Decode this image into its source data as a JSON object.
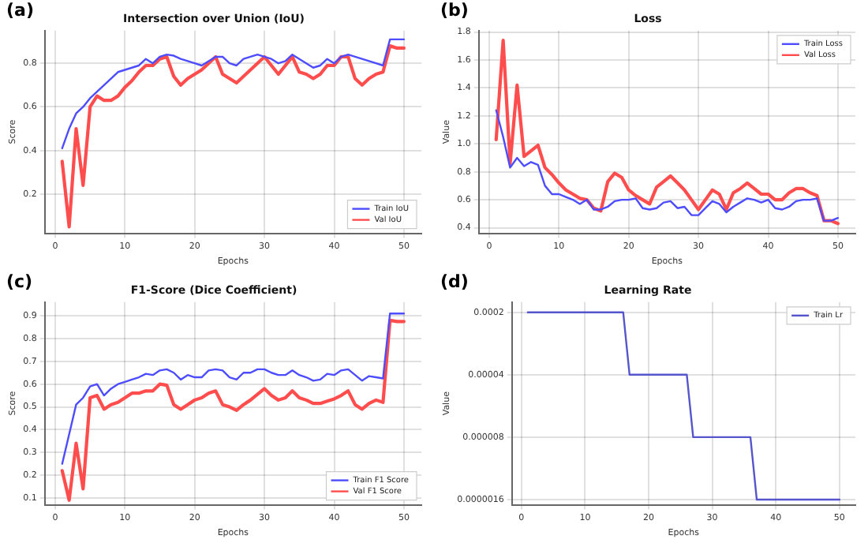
{
  "chart_data": [
    {
      "type": "line",
      "title": "Intersection over Union (IoU)",
      "xlabel": "Epochs",
      "ylabel": "Score",
      "annotations": [
        "(a)"
      ],
      "legend": "bottom right",
      "grid": true,
      "x": [
        1,
        2,
        3,
        4,
        5,
        6,
        7,
        8,
        9,
        10,
        11,
        12,
        13,
        14,
        15,
        16,
        17,
        18,
        19,
        20,
        21,
        22,
        23,
        24,
        25,
        26,
        27,
        28,
        29,
        30,
        31,
        32,
        33,
        34,
        35,
        36,
        37,
        38,
        39,
        40,
        41,
        42,
        43,
        44,
        45,
        46,
        47,
        48,
        49,
        50
      ],
      "xlim": [
        -1.5,
        52.5
      ],
      "xticks": [
        0,
        10,
        20,
        30,
        40,
        50
      ],
      "ylim": [
        0.02,
        0.95
      ],
      "yticks": [
        0.2,
        0.4,
        0.6,
        0.8
      ],
      "series": [
        {
          "name": "Train IoU",
          "color": "#4d4dff",
          "values": [
            0.41,
            0.5,
            0.57,
            0.6,
            0.64,
            0.67,
            0.7,
            0.73,
            0.76,
            0.77,
            0.78,
            0.79,
            0.82,
            0.8,
            0.83,
            0.84,
            0.835,
            0.82,
            0.81,
            0.8,
            0.79,
            0.81,
            0.83,
            0.83,
            0.8,
            0.79,
            0.82,
            0.83,
            0.84,
            0.83,
            0.82,
            0.8,
            0.81,
            0.84,
            0.82,
            0.8,
            0.78,
            0.79,
            0.82,
            0.8,
            0.83,
            0.84,
            0.83,
            0.82,
            0.81,
            0.8,
            0.79,
            0.91,
            0.91,
            0.91
          ]
        },
        {
          "name": "Val IoU",
          "color": "#ff4d4d",
          "values": [
            0.35,
            0.05,
            0.5,
            0.24,
            0.6,
            0.65,
            0.63,
            0.63,
            0.65,
            0.69,
            0.72,
            0.76,
            0.79,
            0.79,
            0.82,
            0.83,
            0.74,
            0.7,
            0.73,
            0.75,
            0.77,
            0.8,
            0.83,
            0.75,
            0.73,
            0.71,
            0.74,
            0.77,
            0.8,
            0.83,
            0.79,
            0.75,
            0.79,
            0.83,
            0.76,
            0.75,
            0.73,
            0.75,
            0.79,
            0.79,
            0.83,
            0.83,
            0.73,
            0.7,
            0.73,
            0.75,
            0.76,
            0.88,
            0.87,
            0.87
          ]
        }
      ]
    },
    {
      "type": "line",
      "title": "Loss",
      "xlabel": "Epochs",
      "ylabel": "Value",
      "annotations": [
        "(b)"
      ],
      "legend": "top right",
      "grid": true,
      "x": [
        1,
        2,
        3,
        4,
        5,
        6,
        7,
        8,
        9,
        10,
        11,
        12,
        13,
        14,
        15,
        16,
        17,
        18,
        19,
        20,
        21,
        22,
        23,
        24,
        25,
        26,
        27,
        28,
        29,
        30,
        31,
        32,
        33,
        34,
        35,
        36,
        37,
        38,
        39,
        40,
        41,
        42,
        43,
        44,
        45,
        46,
        47,
        48,
        49,
        50
      ],
      "xlim": [
        -1.5,
        52.5
      ],
      "xticks": [
        0,
        10,
        20,
        30,
        40,
        50
      ],
      "ylim": [
        0.36,
        1.81
      ],
      "yticks": [
        0.4,
        0.6,
        0.8,
        {
          "value": 1,
          "label": "1.0"
        },
        1.2,
        1.4,
        1.6,
        1.8
      ],
      "series": [
        {
          "name": "Train Loss",
          "color": "#4d4dff",
          "values": [
            1.24,
            1.05,
            0.83,
            0.9,
            0.84,
            0.87,
            0.85,
            0.7,
            0.64,
            0.64,
            0.62,
            0.6,
            0.57,
            0.6,
            0.53,
            0.53,
            0.55,
            0.59,
            0.6,
            0.6,
            0.61,
            0.54,
            0.53,
            0.54,
            0.58,
            0.59,
            0.54,
            0.55,
            0.49,
            0.49,
            0.54,
            0.59,
            0.57,
            0.51,
            0.55,
            0.58,
            0.61,
            0.6,
            0.58,
            0.6,
            0.54,
            0.53,
            0.55,
            0.59,
            0.6,
            0.6,
            0.61,
            0.45,
            0.45,
            0.47
          ]
        },
        {
          "name": "Val Loss",
          "color": "#ff4d4d",
          "values": [
            1.03,
            1.74,
            0.86,
            1.42,
            0.91,
            0.95,
            0.99,
            0.83,
            0.78,
            0.72,
            0.67,
            0.64,
            0.61,
            0.6,
            0.54,
            0.52,
            0.73,
            0.79,
            0.76,
            0.67,
            0.63,
            0.6,
            0.57,
            0.69,
            0.73,
            0.77,
            0.72,
            0.67,
            0.6,
            0.53,
            0.6,
            0.67,
            0.64,
            0.53,
            0.65,
            0.68,
            0.72,
            0.68,
            0.64,
            0.64,
            0.6,
            0.6,
            0.65,
            0.68,
            0.68,
            0.65,
            0.63,
            0.45,
            0.45,
            0.43
          ]
        }
      ]
    },
    {
      "type": "line",
      "title": "F1-Score (Dice Coefficient)",
      "xlabel": "Epochs",
      "ylabel": "Score",
      "annotations": [
        "(c)"
      ],
      "legend": "bottom right",
      "grid": true,
      "x": [
        1,
        2,
        3,
        4,
        5,
        6,
        7,
        8,
        9,
        10,
        11,
        12,
        13,
        14,
        15,
        16,
        17,
        18,
        19,
        20,
        21,
        22,
        23,
        24,
        25,
        26,
        27,
        28,
        29,
        30,
        31,
        32,
        33,
        34,
        35,
        36,
        37,
        38,
        39,
        40,
        41,
        42,
        43,
        44,
        45,
        46,
        47,
        48,
        49,
        50
      ],
      "xlim": [
        -1.5,
        52.5
      ],
      "xticks": [
        0,
        10,
        20,
        30,
        40,
        50
      ],
      "ylim": [
        0.07,
        0.96
      ],
      "yticks": [
        0.1,
        0.2,
        0.3,
        0.4,
        0.5,
        0.6,
        0.7,
        0.8,
        0.9
      ],
      "series": [
        {
          "name": "Train F1 Score",
          "color": "#4d4dff",
          "values": [
            0.25,
            0.38,
            0.51,
            0.54,
            0.59,
            0.6,
            0.55,
            0.58,
            0.6,
            0.61,
            0.62,
            0.63,
            0.645,
            0.64,
            0.66,
            0.665,
            0.65,
            0.62,
            0.64,
            0.63,
            0.63,
            0.66,
            0.665,
            0.66,
            0.63,
            0.62,
            0.65,
            0.65,
            0.665,
            0.665,
            0.65,
            0.64,
            0.64,
            0.66,
            0.64,
            0.63,
            0.615,
            0.62,
            0.645,
            0.64,
            0.66,
            0.665,
            0.64,
            0.615,
            0.635,
            0.63,
            0.625,
            0.91,
            0.91,
            0.91
          ]
        },
        {
          "name": "Val F1 Score",
          "color": "#ff4d4d",
          "values": [
            0.22,
            0.09,
            0.34,
            0.14,
            0.54,
            0.55,
            0.49,
            0.51,
            0.52,
            0.54,
            0.56,
            0.56,
            0.57,
            0.57,
            0.6,
            0.595,
            0.51,
            0.49,
            0.51,
            0.53,
            0.54,
            0.56,
            0.57,
            0.51,
            0.5,
            0.485,
            0.51,
            0.53,
            0.555,
            0.58,
            0.55,
            0.53,
            0.54,
            0.57,
            0.54,
            0.53,
            0.515,
            0.515,
            0.525,
            0.535,
            0.55,
            0.57,
            0.51,
            0.49,
            0.515,
            0.53,
            0.52,
            0.88,
            0.875,
            0.875
          ]
        }
      ]
    },
    {
      "type": "line",
      "title": "Learning Rate",
      "xlabel": "Epochs",
      "ylabel": "Value",
      "annotations": [
        "(d)"
      ],
      "legend": "top right",
      "grid": true,
      "log": "y",
      "x": [
        1,
        2,
        3,
        4,
        5,
        6,
        7,
        8,
        9,
        10,
        11,
        12,
        13,
        14,
        15,
        16,
        17,
        18,
        19,
        20,
        21,
        22,
        23,
        24,
        25,
        26,
        27,
        28,
        29,
        30,
        31,
        32,
        33,
        34,
        35,
        36,
        37,
        38,
        39,
        40,
        41,
        42,
        43,
        44,
        45,
        46,
        47,
        48,
        49,
        50
      ],
      "xlim": [
        -1.5,
        52.5
      ],
      "xticks": [
        0,
        10,
        20,
        30,
        40,
        50
      ],
      "ylim": [
        1.4e-06,
        0.00026
      ],
      "yticks": [
        {
          "value": 1.6e-06,
          "label": "0.0000016"
        },
        {
          "value": 8e-06,
          "label": "0.000008"
        },
        {
          "value": 4e-05,
          "label": "0.00004"
        },
        0.0002
      ],
      "series": [
        {
          "name": "Train Lr",
          "color": "#5555cc",
          "values": [
            0.0002,
            0.0002,
            0.0002,
            0.0002,
            0.0002,
            0.0002,
            0.0002,
            0.0002,
            0.0002,
            0.0002,
            0.0002,
            0.0002,
            0.0002,
            0.0002,
            0.0002,
            0.0002,
            4e-05,
            4e-05,
            4e-05,
            4e-05,
            4e-05,
            4e-05,
            4e-05,
            4e-05,
            4e-05,
            4e-05,
            8e-06,
            8e-06,
            8e-06,
            8e-06,
            8e-06,
            8e-06,
            8e-06,
            8e-06,
            8e-06,
            8e-06,
            1.6e-06,
            1.6e-06,
            1.6e-06,
            1.6e-06,
            1.6e-06,
            1.6e-06,
            1.6e-06,
            1.6e-06,
            1.6e-06,
            1.6e-06,
            1.6e-06,
            1.6e-06,
            1.6e-06,
            1.6e-06
          ]
        }
      ]
    }
  ]
}
